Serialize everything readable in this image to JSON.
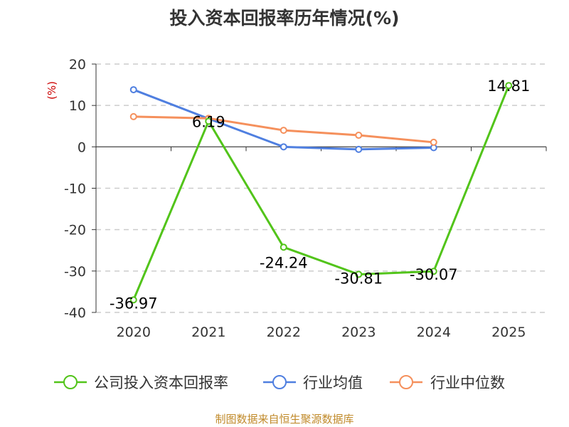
{
  "title": "投入资本回报率历年情况(%)",
  "source": "制图数据来自恒生聚源数据库",
  "chart_data": {
    "type": "line",
    "title": "投入资本回报率历年情况(%)",
    "ylabel": "(%)",
    "xlabel": "",
    "categories": [
      "2020",
      "2021",
      "2022",
      "2023",
      "2024",
      "2025"
    ],
    "ylim": [
      -40,
      20
    ],
    "yticks": [
      20,
      10,
      0,
      -10,
      -20,
      -30,
      -40
    ],
    "grid": true,
    "legend_position": "bottom",
    "series": [
      {
        "name": "公司投入资本回报率",
        "color": "#52c41a",
        "values": [
          -36.97,
          6.19,
          -24.24,
          -30.81,
          -30.07,
          14.81
        ],
        "labels": [
          "-36.97",
          "6.19",
          "-24.24",
          "-30.81",
          "-30.07",
          "14.81"
        ]
      },
      {
        "name": "行业均值",
        "color": "#4f7fe0",
        "values": [
          13.8,
          6.8,
          0.0,
          -0.6,
          -0.2,
          null
        ]
      },
      {
        "name": "行业中位数",
        "color": "#f5905c",
        "values": [
          7.3,
          6.9,
          4.0,
          2.8,
          1.1,
          null
        ]
      }
    ]
  }
}
